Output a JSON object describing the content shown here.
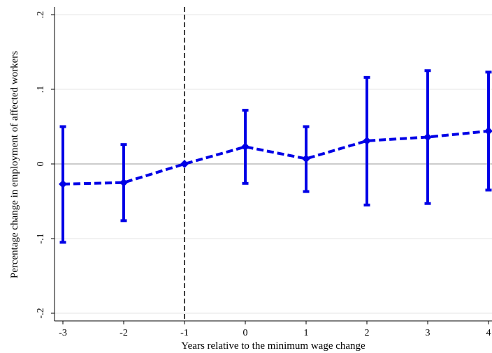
{
  "chart_data": {
    "type": "line",
    "title": "",
    "xlabel": "Years relative to the minimum wage change",
    "ylabel": "Percentage change in employment of affected workers",
    "xlim": [
      -3,
      4
    ],
    "ylim": [
      -0.2,
      0.2
    ],
    "x_ticks": [
      -3,
      -2,
      -1,
      0,
      1,
      2,
      3,
      4
    ],
    "x_tick_labels": [
      "-3",
      "-2",
      "-1",
      "0",
      "1",
      "2",
      "3",
      "4"
    ],
    "y_ticks": [
      -0.2,
      -0.1,
      0,
      0.1,
      0.2
    ],
    "y_tick_labels": [
      "-.2",
      "-.1",
      "0",
      ".1",
      ".2"
    ],
    "grid": true,
    "reference_vline_x": -1,
    "reference_hline_y": 0,
    "series": [
      {
        "color": "#0000e6",
        "line_style": "dashed",
        "marker": "diamond",
        "x": [
          -3,
          -2,
          -1,
          0,
          1,
          2,
          3,
          4
        ],
        "y": [
          -0.027,
          -0.025,
          0.0,
          0.023,
          0.007,
          0.031,
          0.036,
          0.044
        ],
        "ci_low": [
          -0.105,
          -0.076,
          null,
          -0.026,
          -0.037,
          -0.055,
          -0.053,
          -0.035
        ],
        "ci_high": [
          0.05,
          0.026,
          null,
          0.072,
          0.05,
          0.116,
          0.125,
          0.123
        ]
      }
    ]
  }
}
